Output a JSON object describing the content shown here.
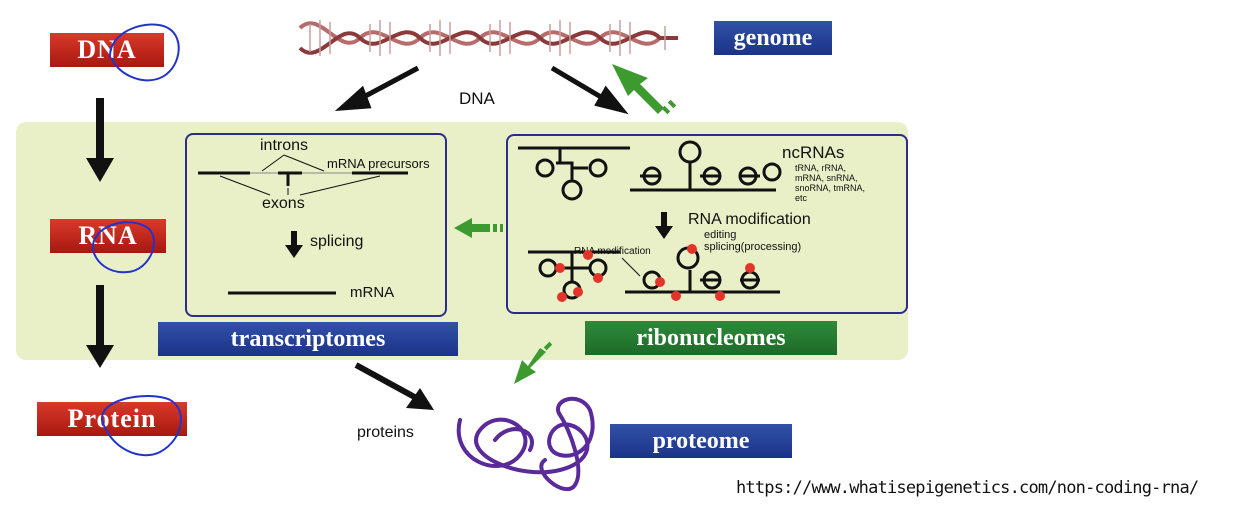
{
  "left_column": {
    "dna": "DNA",
    "rna": "RNA",
    "protein": "Protein"
  },
  "top": {
    "genome": "genome",
    "dna_label": "DNA"
  },
  "transcript_box": {
    "introns": "introns",
    "mrna_precursors": "mRNA precursors",
    "exons": "exons",
    "splicing": "splicing",
    "mrna": "mRNA"
  },
  "ncrna_box": {
    "title": "ncRNAs",
    "types_line1": "tRNA, rRNA,",
    "types_line2": "mRNA, snRNA,",
    "types_line3": "snoRNA, tmRNA,",
    "types_line4": "etc",
    "rna_modification": "RNA modification",
    "editing": "editing",
    "splicing_processing": "splicing(processing)",
    "rna_modification_small": "RNA modification"
  },
  "labels": {
    "transcriptomes": "transcriptomes",
    "ribonucleomes": "ribonucleomes",
    "proteome": "proteome",
    "proteins": "proteins"
  },
  "source_url": "https://www.whatisepigenetics.com/non-coding-rna/",
  "colors": {
    "red_label": "#c0251a",
    "blue_label": "#1f3a8f",
    "green_label": "#267a31",
    "panel": "#e9efc6",
    "box_border": "#2c2c8c",
    "arrow_green": "#3c9a2e",
    "protein_purple": "#5a2a9a",
    "handwriting": "#2233cc"
  }
}
